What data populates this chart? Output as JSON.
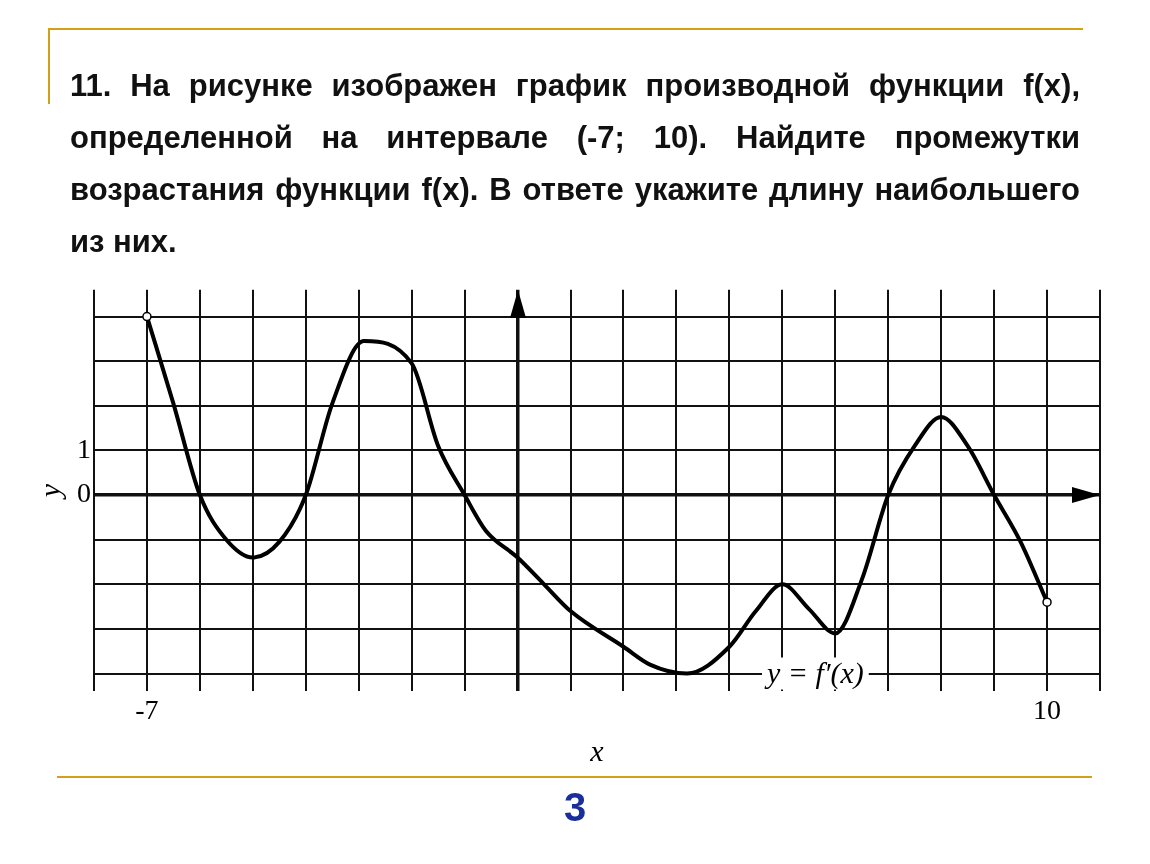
{
  "chart_data": {
    "type": "line",
    "title": "11. На рисунке изображен график производной функции f(x), определенной на интервале (-7; 10). Найдите промежутки возрастания функции f(x). В ответе укажите длину наибольшего из них.",
    "xlabel": "x",
    "ylabel": "y",
    "annotations": [
      "3"
    ],
    "x": [
      -7,
      -6.5,
      -6,
      -5.5,
      -5,
      -4.5,
      -4,
      -3.5,
      -2.9,
      -2,
      -1.5,
      -1,
      -0.6,
      0,
      0.5,
      1,
      2,
      2.5,
      3.2,
      4,
      4.5,
      5,
      5.5,
      6,
      6.5,
      7,
      7.5,
      8,
      8.5,
      9,
      9.5,
      10
    ],
    "series": [
      {
        "name": "y = f′(x)",
        "color": "#000000",
        "values": [
          4,
          2.05,
          0,
          -1,
          -1.4,
          -1.05,
          0,
          2.05,
          3.45,
          2.95,
          1.1,
          0,
          -0.8,
          -1.4,
          -2,
          -2.6,
          -3.4,
          -3.8,
          -4,
          -3.4,
          -2.6,
          -2,
          -2.55,
          -3.1,
          -1.9,
          0,
          1.1,
          1.75,
          1.1,
          0,
          -1.05,
          -2.4
        ]
      }
    ],
    "xlim": [
      -8,
      11
    ],
    "ylim": [
      -4.4,
      4.6
    ],
    "xticks": [
      {
        "value": -8,
        "label": null
      },
      -7,
      {
        "value": -6,
        "label": null
      },
      {
        "value": -5,
        "label": null
      },
      {
        "value": -4,
        "label": null
      },
      {
        "value": -3,
        "label": null
      },
      {
        "value": -2,
        "label": null
      },
      {
        "value": -1,
        "label": null
      },
      {
        "value": 0,
        "label": null
      },
      {
        "value": 1,
        "label": null
      },
      {
        "value": 2,
        "label": null
      },
      {
        "value": 3,
        "label": null
      },
      {
        "value": 4,
        "label": null
      },
      {
        "value": 5,
        "label": null
      },
      {
        "value": 6,
        "label": null
      },
      {
        "value": 7,
        "label": null
      },
      {
        "value": 8,
        "label": null
      },
      {
        "value": 9,
        "label": null
      },
      10,
      {
        "value": 11,
        "label": null
      }
    ],
    "yticks": [
      {
        "value": -4,
        "label": null
      },
      {
        "value": -3,
        "label": null
      },
      {
        "value": -2,
        "label": null
      },
      {
        "value": -1,
        "label": null
      },
      0,
      1,
      {
        "value": 2,
        "label": null
      },
      {
        "value": 3,
        "label": null
      },
      {
        "value": 4,
        "label": null
      }
    ],
    "grid": true,
    "legend": false,
    "marker": "none",
    "line_style": "solid"
  }
}
